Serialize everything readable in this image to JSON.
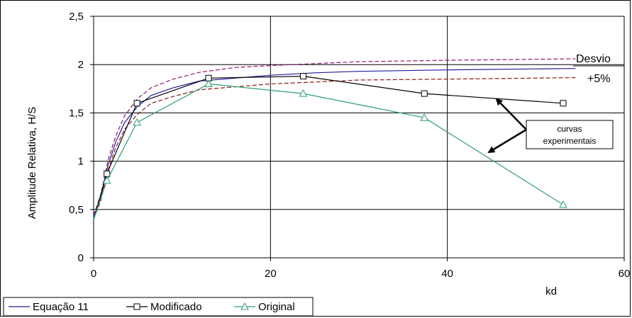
{
  "chart_data": {
    "type": "line",
    "xlabel": "kd",
    "ylabel": "Amplitude Relativa, H/S",
    "xlim": [
      0,
      60
    ],
    "ylim": [
      0,
      2.5
    ],
    "x_ticks": [
      "0",
      "20",
      "40",
      "60"
    ],
    "y_ticks": [
      "0",
      "0,5",
      "1",
      "1,5",
      "2",
      "2,5"
    ],
    "grid": true,
    "legend_position": "bottom-left",
    "series": [
      {
        "name": "Equação 11",
        "color": "#1f1f9c",
        "marker": "none",
        "x": [
          0.0,
          0.8,
          1.6,
          2.5,
          3.5,
          5,
          6.5,
          9,
          12,
          16,
          20,
          25,
          30,
          40,
          50,
          54.5
        ],
        "y": [
          0.42,
          0.62,
          0.95,
          1.2,
          1.4,
          1.57,
          1.68,
          1.76,
          1.83,
          1.86,
          1.89,
          1.915,
          1.93,
          1.945,
          1.955,
          1.96
        ]
      },
      {
        "name": "Modificado",
        "color": "#000000",
        "marker": "square",
        "x": [
          0.0,
          1.5,
          4.9,
          13.0,
          23.7,
          37.4,
          53.1
        ],
        "y": [
          0.4,
          0.87,
          1.6,
          1.86,
          1.88,
          1.7,
          1.6
        ]
      },
      {
        "name": "Original",
        "color": "#2e9e73",
        "marker": "triangle",
        "x": [
          0.0,
          1.5,
          4.9,
          13.0,
          23.7,
          37.4,
          53.1
        ],
        "y": [
          0.4,
          0.8,
          1.4,
          1.8,
          1.7,
          1.45,
          0.55
        ]
      }
    ],
    "band_upper": {
      "color": "#8b1a6b",
      "x": [
        0.0,
        0.8,
        1.6,
        2.5,
        3.5,
        5,
        6.5,
        9,
        12,
        16,
        20,
        25,
        30,
        40,
        50,
        54.5
      ],
      "y": [
        0.44,
        0.65,
        1.0,
        1.26,
        1.47,
        1.65,
        1.76,
        1.85,
        1.92,
        1.97,
        1.99,
        2.01,
        2.03,
        2.045,
        2.055,
        2.06
      ]
    },
    "band_lower": {
      "color": "#8b1a1a",
      "x": [
        0.0,
        0.8,
        1.6,
        2.5,
        3.5,
        5,
        6.5,
        9,
        12,
        16,
        20,
        25,
        30,
        40,
        50,
        54.5
      ],
      "y": [
        0.4,
        0.59,
        0.9,
        1.14,
        1.33,
        1.49,
        1.6,
        1.67,
        1.74,
        1.77,
        1.8,
        1.82,
        1.84,
        1.85,
        1.86,
        1.865
      ]
    },
    "annotations": {
      "desvio": "Desvio",
      "plus5": "+5%",
      "box_line1": "curvas",
      "box_line2": "experimentais"
    }
  }
}
